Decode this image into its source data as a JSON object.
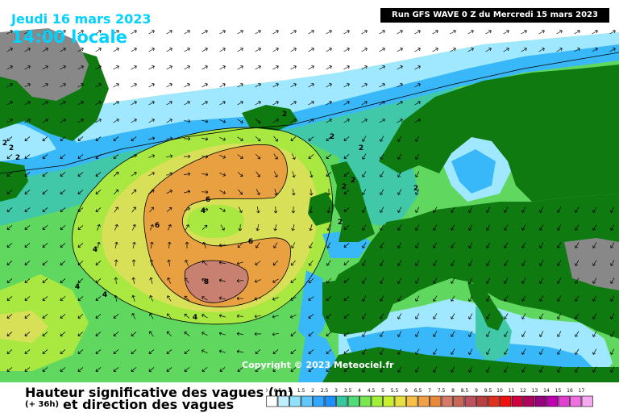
{
  "header": {
    "date": "Jeudi 16 mars 2023",
    "time": "14:00 locale",
    "run": "Run GFS WAVE 0 Z du Mercredi 15 mars 2023"
  },
  "copyright": "Copyright © 2023 Meteociel.fr",
  "footer": {
    "title_line1": "Hauteur significative des vagues (m)",
    "title_line2": "et direction des vagues",
    "offset": "(+ 36h)"
  },
  "legend": {
    "labels": [
      "0",
      "0.5",
      "1",
      "1.5",
      "2",
      "2.5",
      "3",
      "3.5",
      "4",
      "4.5",
      "5",
      "5.5",
      "6",
      "6.5",
      "7",
      "7.5",
      "8",
      "8.5",
      "9",
      "9.5",
      "10",
      "11",
      "12",
      "13",
      "14",
      "15",
      "16",
      "17"
    ],
    "colors": [
      "#ffffff",
      "#c0f0ff",
      "#90e0ff",
      "#60c8ff",
      "#30a8ff",
      "#1e90ff",
      "#38c8a0",
      "#50dc78",
      "#78e850",
      "#a0f038",
      "#c8f030",
      "#e8e040",
      "#f8c048",
      "#f0a048",
      "#e88838",
      "#d87868",
      "#c86858",
      "#c05060",
      "#b84040",
      "#e03020",
      "#f01010",
      "#d00040",
      "#b00060",
      "#980080",
      "#c000b0",
      "#e040d0",
      "#f070e0",
      "#f8a8f0"
    ],
    "colors_note": ""
  },
  "map": {
    "colors": {
      "land": "#0e7a10",
      "unavailable": "#888888",
      "calm_sea": "#ffffff",
      "low_wave": "#a0e8ff",
      "mid_low": "#38b8f8",
      "wave_2m": "#40c8a8",
      "wave_3m": "#60d860",
      "wave_4m": "#a8e840",
      "wave_5m": "#d8e058",
      "wave_6m": "#e8a040",
      "wave_8m": "#c88070",
      "arrow": "#000000"
    },
    "contour_labels": [
      {
        "text": "2"
      },
      {
        "text": "2"
      },
      {
        "text": "2"
      },
      {
        "text": "2"
      },
      {
        "text": "2"
      },
      {
        "text": "2"
      },
      {
        "text": "2"
      },
      {
        "text": "2"
      },
      {
        "text": "2"
      },
      {
        "text": "2"
      },
      {
        "text": "4"
      },
      {
        "text": "4"
      },
      {
        "text": "4"
      },
      {
        "text": "4"
      },
      {
        "text": "4"
      },
      {
        "text": "6"
      },
      {
        "text": "6"
      },
      {
        "text": "6"
      },
      {
        "text": "8"
      }
    ]
  }
}
